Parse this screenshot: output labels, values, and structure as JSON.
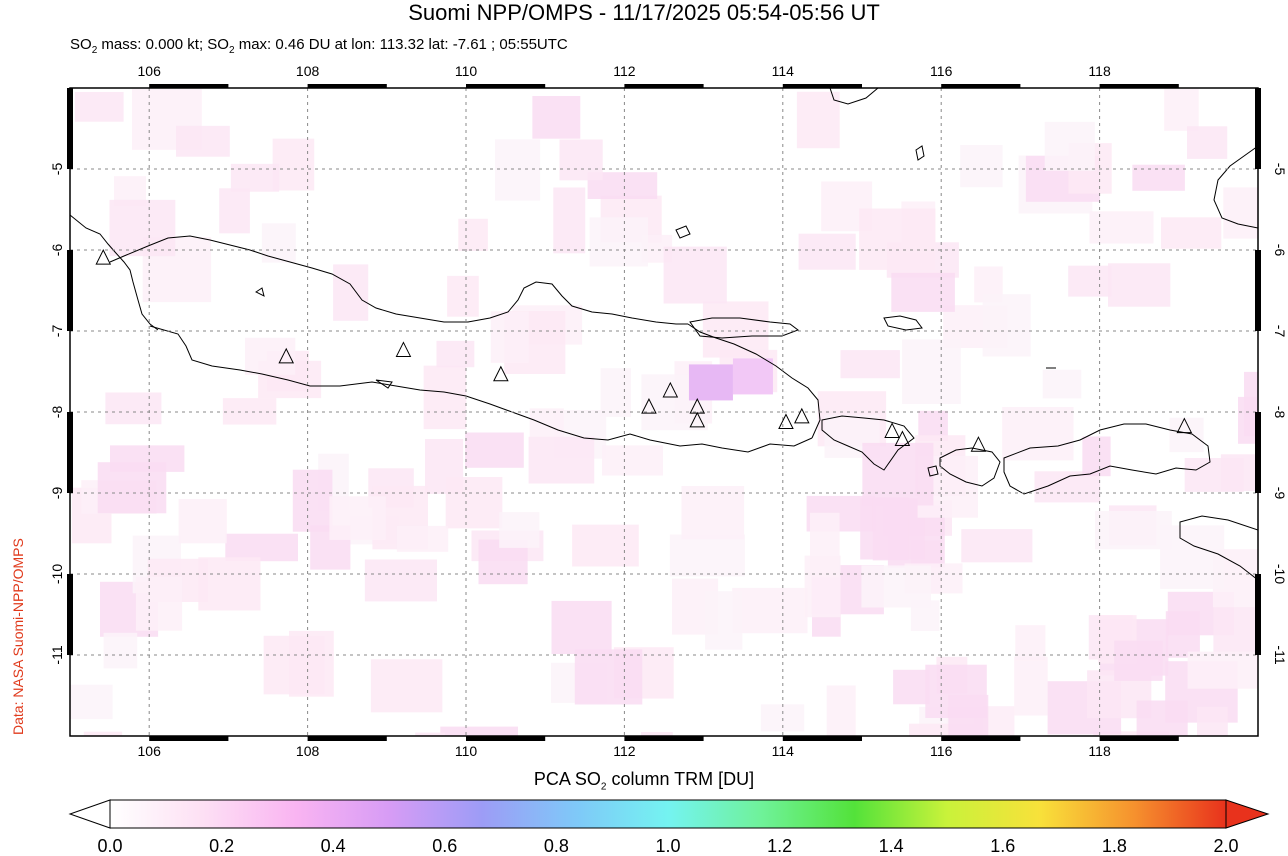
{
  "title": "Suomi NPP/OMPS - 11/17/2025 05:54-05:56 UT",
  "subtitle": {
    "part1": "SO",
    "sub1": "2",
    "part2": " mass: 0.000 kt; SO",
    "sub2": "2",
    "part3": " max: 0.46 DU at lon: 113.32 lat: -7.61 ; 05:55UTC"
  },
  "credit": "Data: NASA Suomi-NPP/OMPS",
  "map": {
    "lon_range": [
      105,
      120
    ],
    "lat_range": [
      -12,
      -4
    ],
    "lon_ticks": [
      106,
      108,
      110,
      112,
      114,
      116,
      118
    ],
    "lat_ticks": [
      -5,
      -6,
      -7,
      -8,
      -9,
      -10,
      -11
    ],
    "lon_tick_labels": [
      "106",
      "108",
      "110",
      "112",
      "114",
      "116",
      "118"
    ],
    "lat_tick_labels": [
      "-5",
      "-6",
      "-7",
      "-8",
      "-9",
      "-10",
      "-11"
    ],
    "grid": true,
    "volcanoes": [
      {
        "lon": 105.42,
        "lat": -6.1
      },
      {
        "lon": 107.73,
        "lat": -7.32
      },
      {
        "lon": 109.21,
        "lat": -7.24
      },
      {
        "lon": 110.44,
        "lat": -7.54
      },
      {
        "lon": 112.31,
        "lat": -7.94
      },
      {
        "lon": 112.58,
        "lat": -7.74
      },
      {
        "lon": 112.92,
        "lat": -7.94
      },
      {
        "lon": 112.92,
        "lat": -8.11
      },
      {
        "lon": 114.04,
        "lat": -8.13
      },
      {
        "lon": 114.24,
        "lat": -8.06
      },
      {
        "lon": 115.38,
        "lat": -8.24
      },
      {
        "lon": 115.51,
        "lat": -8.34
      },
      {
        "lon": 116.47,
        "lat": -8.41
      },
      {
        "lon": 119.07,
        "lat": -8.18
      }
    ],
    "so2_max_point": {
      "lon": 113.32,
      "lat": -7.61,
      "value": 0.46
    }
  },
  "colorbar": {
    "label_pre": "PCA SO",
    "label_sub": "2",
    "label_post": " column TRM [DU]",
    "min": 0.0,
    "max": 2.0,
    "tick_labels": [
      "0.0",
      "0.2",
      "0.4",
      "0.6",
      "0.8",
      "1.0",
      "1.2",
      "1.4",
      "1.6",
      "1.8",
      "2.0"
    ],
    "colors": [
      "#ffffff",
      "#fde0f4",
      "#f9b4f2",
      "#d79cf5",
      "#9d9cf6",
      "#7fc8f8",
      "#74f3f1",
      "#6ff29a",
      "#53e23a",
      "#c9f23a",
      "#f8e13a",
      "#f6922e",
      "#e8321c"
    ]
  }
}
